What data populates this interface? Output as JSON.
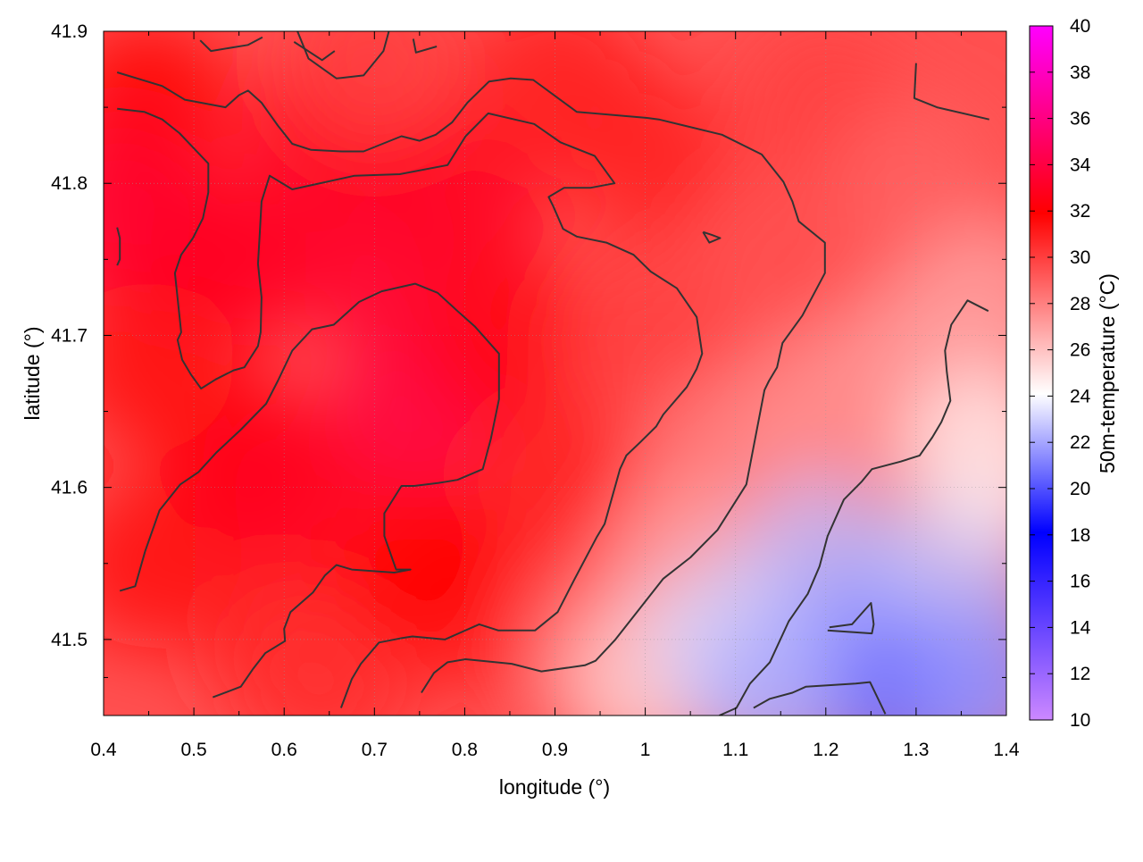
{
  "chart_data": {
    "type": "heatmap",
    "xlabel": "longitude (°)",
    "ylabel": "latitude (°)",
    "colorbar_label": "50m-temperature (°C)",
    "xlim": [
      0.4,
      1.4
    ],
    "ylim": [
      41.45,
      41.9
    ],
    "xticks": [
      "0.4",
      "0.5",
      "0.6",
      "0.7",
      "0.8",
      "0.9",
      "1",
      "1.1",
      "1.2",
      "1.3",
      "1.4"
    ],
    "yticks": [
      "41.5",
      "41.6",
      "41.7",
      "41.8",
      "41.9"
    ],
    "colorbar_range": [
      10,
      40
    ],
    "colorbar_ticks": [
      "10",
      "12",
      "14",
      "16",
      "18",
      "20",
      "22",
      "24",
      "26",
      "28",
      "30",
      "32",
      "34",
      "36",
      "38",
      "40"
    ],
    "grid": true,
    "colormap": [
      "#cc88ff",
      "#0000ff",
      "#ffffff",
      "#ff0000",
      "#ff00ff"
    ],
    "contour_color": "#333333",
    "temperature_field": [
      {
        "lon": 0.45,
        "lat": 41.85,
        "t": 32.0
      },
      {
        "lon": 0.5,
        "lat": 41.75,
        "t": 31.0
      },
      {
        "lon": 0.42,
        "lat": 41.78,
        "t": 33.5
      },
      {
        "lon": 0.45,
        "lat": 41.55,
        "t": 31.5
      },
      {
        "lon": 0.55,
        "lat": 41.62,
        "t": 32.0
      },
      {
        "lon": 0.6,
        "lat": 41.5,
        "t": 31.0
      },
      {
        "lon": 0.75,
        "lat": 41.65,
        "t": 34.0
      },
      {
        "lon": 0.7,
        "lat": 41.75,
        "t": 33.5
      },
      {
        "lon": 0.8,
        "lat": 41.8,
        "t": 33.0
      },
      {
        "lon": 0.65,
        "lat": 41.83,
        "t": 33.0
      },
      {
        "lon": 0.85,
        "lat": 41.7,
        "t": 32.5
      },
      {
        "lon": 0.9,
        "lat": 41.6,
        "t": 31.0
      },
      {
        "lon": 0.8,
        "lat": 41.52,
        "t": 31.0
      },
      {
        "lon": 0.65,
        "lat": 41.47,
        "t": 30.5
      },
      {
        "lon": 0.95,
        "lat": 41.5,
        "t": 29.0
      },
      {
        "lon": 1.0,
        "lat": 41.7,
        "t": 30.0
      },
      {
        "lon": 1.0,
        "lat": 41.82,
        "t": 31.0
      },
      {
        "lon": 0.9,
        "lat": 41.87,
        "t": 31.0
      },
      {
        "lon": 0.7,
        "lat": 41.88,
        "t": 30.0
      },
      {
        "lon": 1.2,
        "lat": 41.85,
        "t": 30.0
      },
      {
        "lon": 1.15,
        "lat": 41.75,
        "t": 29.5
      },
      {
        "lon": 1.3,
        "lat": 41.8,
        "t": 29.0
      },
      {
        "lon": 1.38,
        "lat": 41.72,
        "t": 27.0
      },
      {
        "lon": 1.3,
        "lat": 41.68,
        "t": 27.0
      },
      {
        "lon": 1.1,
        "lat": 41.62,
        "t": 28.0
      },
      {
        "lon": 1.2,
        "lat": 41.65,
        "t": 27.5
      },
      {
        "lon": 1.05,
        "lat": 41.55,
        "t": 27.0
      },
      {
        "lon": 1.0,
        "lat": 41.47,
        "t": 25.5
      },
      {
        "lon": 1.1,
        "lat": 41.5,
        "t": 23.0
      },
      {
        "lon": 1.2,
        "lat": 41.55,
        "t": 22.5
      },
      {
        "lon": 1.25,
        "lat": 41.5,
        "t": 21.5
      },
      {
        "lon": 1.35,
        "lat": 41.55,
        "t": 22.5
      },
      {
        "lon": 1.38,
        "lat": 41.62,
        "t": 24.5
      },
      {
        "lon": 1.15,
        "lat": 41.46,
        "t": 22.0
      },
      {
        "lon": 1.3,
        "lat": 41.46,
        "t": 20.5
      },
      {
        "lon": 1.38,
        "lat": 41.47,
        "t": 21.5
      },
      {
        "lon": 0.6,
        "lat": 41.6,
        "t": 33.0
      },
      {
        "lon": 0.55,
        "lat": 41.75,
        "t": 33.0
      },
      {
        "lon": 0.45,
        "lat": 41.68,
        "t": 31.5
      },
      {
        "lon": 0.75,
        "lat": 41.55,
        "t": 32.0
      }
    ],
    "contours": [
      [
        [
          0.415,
          41.873
        ],
        [
          0.465,
          41.864
        ],
        [
          0.49,
          41.855
        ],
        [
          0.535,
          41.85
        ],
        [
          0.55,
          41.858
        ],
        [
          0.56,
          41.861
        ],
        [
          0.575,
          41.853
        ],
        [
          0.593,
          41.838
        ],
        [
          0.609,
          41.826
        ],
        [
          0.63,
          41.822
        ],
        [
          0.664,
          41.821
        ],
        [
          0.688,
          41.821
        ],
        [
          0.73,
          41.831
        ],
        [
          0.75,
          41.828
        ],
        [
          0.768,
          41.832
        ],
        [
          0.786,
          41.84
        ],
        [
          0.803,
          41.853
        ],
        [
          0.827,
          41.867
        ],
        [
          0.851,
          41.869
        ],
        [
          0.876,
          41.868
        ],
        [
          0.924,
          41.847
        ],
        [
          1.002,
          41.843
        ],
        [
          1.015,
          41.842
        ],
        [
          1.085,
          41.832
        ],
        [
          1.129,
          41.819
        ],
        [
          1.153,
          41.801
        ],
        [
          1.163,
          41.788
        ],
        [
          1.17,
          41.775
        ],
        [
          1.199,
          41.761
        ],
        [
          1.199,
          41.741
        ],
        [
          1.174,
          41.713
        ],
        [
          1.152,
          41.695
        ],
        [
          1.149,
          41.687
        ],
        [
          1.146,
          41.679
        ],
        [
          1.137,
          41.67
        ],
        [
          1.132,
          41.664
        ],
        [
          1.112,
          41.602
        ],
        [
          1.08,
          41.572
        ],
        [
          1.05,
          41.554
        ],
        [
          1.02,
          41.54
        ],
        [
          0.967,
          41.5
        ],
        [
          0.945,
          41.486
        ],
        [
          0.933,
          41.483
        ],
        [
          0.885,
          41.479
        ],
        [
          0.852,
          41.484
        ],
        [
          0.801,
          41.487
        ],
        [
          0.781,
          41.485
        ],
        [
          0.766,
          41.478
        ],
        [
          0.752,
          41.465
        ]
      ],
      [
        [
          0.415,
          41.849
        ],
        [
          0.445,
          41.847
        ],
        [
          0.465,
          41.842
        ],
        [
          0.484,
          41.833
        ],
        [
          0.508,
          41.818
        ],
        [
          0.516,
          41.813
        ],
        [
          0.516,
          41.794
        ],
        [
          0.51,
          41.777
        ],
        [
          0.499,
          41.764
        ],
        [
          0.486,
          41.753
        ],
        [
          0.479,
          41.741
        ],
        [
          0.486,
          41.702
        ],
        [
          0.482,
          41.697
        ],
        [
          0.487,
          41.684
        ],
        [
          0.497,
          41.674
        ],
        [
          0.508,
          41.665
        ],
        [
          0.524,
          41.671
        ],
        [
          0.544,
          41.677
        ],
        [
          0.556,
          41.679
        ],
        [
          0.571,
          41.693
        ],
        [
          0.574,
          41.702
        ],
        [
          0.575,
          41.725
        ],
        [
          0.571,
          41.747
        ],
        [
          0.573,
          41.767
        ],
        [
          0.575,
          41.788
        ],
        [
          0.584,
          41.805
        ],
        [
          0.609,
          41.796
        ],
        [
          0.632,
          41.799
        ],
        [
          0.678,
          41.805
        ],
        [
          0.728,
          41.806
        ],
        [
          0.781,
          41.812
        ],
        [
          0.801,
          41.831
        ],
        [
          0.826,
          41.846
        ],
        [
          0.877,
          41.839
        ],
        [
          0.906,
          41.827
        ],
        [
          0.944,
          41.818
        ],
        [
          0.966,
          41.8
        ],
        [
          0.939,
          41.797
        ],
        [
          0.91,
          41.797
        ],
        [
          0.893,
          41.791
        ],
        [
          0.898,
          41.785
        ],
        [
          0.909,
          41.77
        ],
        [
          0.924,
          41.765
        ],
        [
          0.957,
          41.761
        ],
        [
          0.987,
          41.753
        ],
        [
          1.006,
          41.742
        ],
        [
          1.035,
          41.731
        ],
        [
          1.057,
          41.712
        ],
        [
          1.063,
          41.688
        ],
        [
          1.057,
          41.678
        ],
        [
          1.046,
          41.666
        ],
        [
          1.02,
          41.648
        ],
        [
          1.012,
          41.64
        ],
        [
          0.995,
          41.63
        ],
        [
          0.979,
          41.621
        ],
        [
          0.972,
          41.612
        ],
        [
          0.955,
          41.576
        ],
        [
          0.946,
          41.567
        ],
        [
          0.922,
          41.54
        ],
        [
          0.903,
          41.518
        ],
        [
          0.878,
          41.506
        ],
        [
          0.837,
          41.506
        ],
        [
          0.816,
          41.51
        ],
        [
          0.778,
          41.5
        ],
        [
          0.742,
          41.502
        ],
        [
          0.731,
          41.501
        ],
        [
          0.705,
          41.498
        ],
        [
          0.685,
          41.484
        ],
        [
          0.675,
          41.474
        ],
        [
          0.663,
          41.455
        ]
      ],
      [
        [
          0.418,
          41.532
        ],
        [
          0.435,
          41.535
        ],
        [
          0.446,
          41.558
        ],
        [
          0.462,
          41.585
        ],
        [
          0.485,
          41.602
        ],
        [
          0.505,
          41.61
        ],
        [
          0.525,
          41.623
        ],
        [
          0.552,
          41.638
        ],
        [
          0.58,
          41.655
        ],
        [
          0.593,
          41.67
        ],
        [
          0.609,
          41.69
        ],
        [
          0.631,
          41.704
        ],
        [
          0.655,
          41.707
        ],
        [
          0.683,
          41.722
        ],
        [
          0.708,
          41.729
        ],
        [
          0.745,
          41.734
        ],
        [
          0.77,
          41.728
        ],
        [
          0.792,
          41.716
        ],
        [
          0.811,
          41.706
        ],
        [
          0.838,
          41.688
        ],
        [
          0.838,
          41.658
        ],
        [
          0.829,
          41.632
        ],
        [
          0.82,
          41.612
        ],
        [
          0.792,
          41.605
        ],
        [
          0.771,
          41.603
        ],
        [
          0.744,
          41.601
        ],
        [
          0.73,
          41.601
        ],
        [
          0.711,
          41.583
        ],
        [
          0.711,
          41.568
        ],
        [
          0.724,
          41.546
        ],
        [
          0.74,
          41.546
        ],
        [
          0.722,
          41.544
        ],
        [
          0.675,
          41.546
        ],
        [
          0.658,
          41.549
        ],
        [
          0.645,
          41.542
        ],
        [
          0.632,
          41.531
        ],
        [
          0.607,
          41.518
        ],
        [
          0.6,
          41.507
        ],
        [
          0.601,
          41.499
        ],
        [
          0.579,
          41.491
        ],
        [
          0.566,
          41.481
        ],
        [
          0.552,
          41.469
        ],
        [
          0.521,
          41.462
        ]
      ],
      [
        [
          0.415,
          41.771
        ],
        [
          0.418,
          41.764
        ],
        [
          0.418,
          41.75
        ],
        [
          0.415,
          41.746
        ]
      ],
      [
        [
          0.614,
          41.901
        ],
        [
          0.627,
          41.882
        ],
        [
          0.658,
          41.869
        ],
        [
          0.688,
          41.871
        ],
        [
          0.71,
          41.887
        ],
        [
          0.716,
          41.9
        ]
      ],
      [
        [
          0.507,
          41.894
        ],
        [
          0.519,
          41.887
        ],
        [
          0.56,
          41.891
        ],
        [
          0.576,
          41.896
        ]
      ],
      [
        [
          0.611,
          41.893
        ],
        [
          0.642,
          41.881
        ],
        [
          0.656,
          41.887
        ]
      ],
      [
        [
          0.743,
          41.895
        ],
        [
          0.746,
          41.886
        ],
        [
          0.769,
          41.89
        ]
      ],
      [
        [
          1.064,
          41.768
        ],
        [
          1.074,
          41.766
        ],
        [
          1.083,
          41.764
        ],
        [
          1.071,
          41.761
        ],
        [
          1.064,
          41.768
        ]
      ],
      [
        [
          1.3,
          41.879
        ],
        [
          1.298,
          41.856
        ],
        [
          1.323,
          41.85
        ],
        [
          1.381,
          41.842
        ]
      ],
      [
        [
          1.38,
          41.716
        ],
        [
          1.357,
          41.723
        ],
        [
          1.339,
          41.707
        ],
        [
          1.332,
          41.69
        ],
        [
          1.334,
          41.676
        ],
        [
          1.338,
          41.657
        ],
        [
          1.328,
          41.643
        ],
        [
          1.318,
          41.633
        ],
        [
          1.304,
          41.621
        ],
        [
          1.283,
          41.617
        ],
        [
          1.251,
          41.612
        ],
        [
          1.24,
          41.604
        ],
        [
          1.22,
          41.592
        ],
        [
          1.202,
          41.568
        ],
        [
          1.193,
          41.548
        ],
        [
          1.18,
          41.53
        ],
        [
          1.159,
          41.512
        ],
        [
          1.138,
          41.485
        ],
        [
          1.116,
          41.471
        ],
        [
          1.101,
          41.455
        ],
        [
          1.082,
          41.45
        ]
      ],
      [
        [
          1.12,
          41.455
        ],
        [
          1.138,
          41.461
        ],
        [
          1.163,
          41.465
        ],
        [
          1.178,
          41.469
        ],
        [
          1.233,
          41.471
        ],
        [
          1.249,
          41.472
        ],
        [
          1.266,
          41.451
        ]
      ],
      [
        [
          1.204,
          41.508
        ],
        [
          1.229,
          41.51
        ],
        [
          1.25,
          41.524
        ],
        [
          1.253,
          41.51
        ],
        [
          1.251,
          41.504
        ],
        [
          1.202,
          41.506
        ]
      ]
    ]
  }
}
